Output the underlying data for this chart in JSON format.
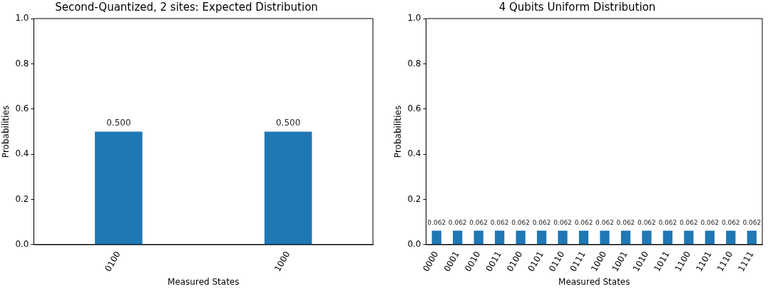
{
  "chart_data": [
    {
      "type": "bar",
      "title": "Second-Quantized, 2 sites: Expected Distribution",
      "xlabel": "Measured States",
      "ylabel": "Probabilities",
      "categories": [
        "0100",
        "1000"
      ],
      "values": [
        0.5,
        0.5
      ],
      "value_labels": [
        "0.500",
        "0.500"
      ],
      "color": "#1f77b4",
      "ylim": [
        0,
        1
      ],
      "yticks": [
        {
          "value": 0,
          "label": "0.0"
        },
        {
          "value": 0.2,
          "label": "0.2"
        },
        {
          "value": 0.4,
          "label": "0.4"
        },
        {
          "value": 0.6,
          "label": "0.6"
        },
        {
          "value": 0.8,
          "label": "0.8"
        },
        {
          "value": 1,
          "label": "1.0"
        }
      ]
    },
    {
      "type": "bar",
      "title": "4 Qubits Uniform Distribution",
      "xlabel": "Measured States",
      "ylabel": "Probabilities",
      "categories": [
        "0000",
        "0001",
        "0010",
        "0011",
        "0100",
        "0101",
        "0110",
        "0111",
        "1000",
        "1001",
        "1010",
        "1011",
        "1100",
        "1101",
        "1110",
        "1111"
      ],
      "values": [
        0.062,
        0.062,
        0.062,
        0.062,
        0.062,
        0.062,
        0.062,
        0.062,
        0.062,
        0.062,
        0.062,
        0.062,
        0.062,
        0.062,
        0.062,
        0.062
      ],
      "value_labels": [
        "0.062",
        "0.062",
        "0.062",
        "0.062",
        "0.062",
        "0.062",
        "0.062",
        "0.062",
        "0.062",
        "0.062",
        "0.062",
        "0.062",
        "0.062",
        "0.062",
        "0.062",
        "0.062"
      ],
      "color": "#1f77b4",
      "ylim": [
        0,
        1
      ],
      "yticks": [
        {
          "value": 0,
          "label": "0.0"
        },
        {
          "value": 0.2,
          "label": "0.2"
        },
        {
          "value": 0.4,
          "label": "0.4"
        },
        {
          "value": 0.6,
          "label": "0.6"
        },
        {
          "value": 0.8,
          "label": "0.8"
        },
        {
          "value": 1,
          "label": "1.0"
        }
      ]
    }
  ]
}
